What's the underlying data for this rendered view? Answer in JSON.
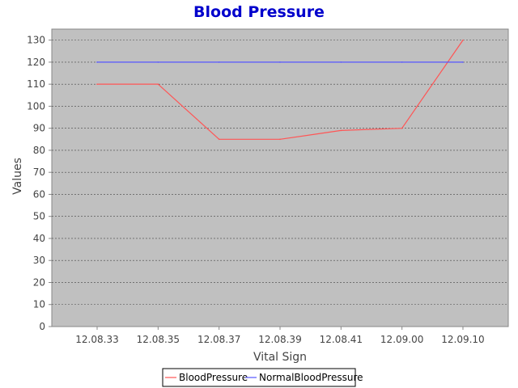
{
  "chart_data": {
    "type": "line",
    "title": "Blood Pressure",
    "xlabel": "Vital Sign",
    "ylabel": "Values",
    "categories": [
      "12.08.33",
      "12.08.35",
      "12.08.37",
      "12.08.39",
      "12.08.41",
      "12.09.00",
      "12.09.10"
    ],
    "series": [
      {
        "name": "BloodPressure",
        "values": [
          110,
          110,
          85,
          85,
          89,
          90,
          130
        ],
        "color": "#ff5555"
      },
      {
        "name": "NormalBloodPressure",
        "values": [
          120,
          120,
          120,
          120,
          120,
          120,
          120
        ],
        "color": "#5555ff"
      }
    ],
    "ylim": [
      0,
      135
    ],
    "yticks": [
      0,
      10,
      20,
      30,
      40,
      50,
      60,
      70,
      80,
      90,
      100,
      110,
      120,
      130
    ],
    "grid": true,
    "legend": "bottom",
    "colors": {
      "title": "#0000cc",
      "plot_background": "#c0c0c0",
      "gridline": "#444444"
    }
  }
}
